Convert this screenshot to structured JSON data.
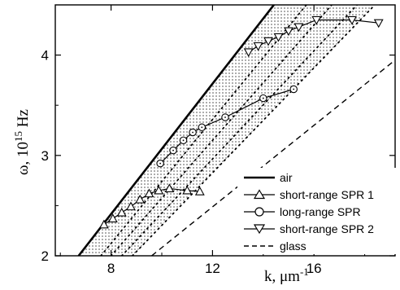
{
  "chart_data": {
    "type": "line",
    "xlabel": {
      "prefix": "k, ",
      "unit": "μm",
      "exp": "-1"
    },
    "ylabel": {
      "prefix": "ω, 10",
      "exp": "15",
      "unit": " Hz"
    },
    "xlim": [
      5.8,
      19.2
    ],
    "ylim": [
      2.0,
      4.5
    ],
    "xticks": [
      8,
      12,
      16
    ],
    "yticks": [
      2,
      3,
      4
    ],
    "grid": false,
    "legend_position": "bottom-right",
    "series": [
      {
        "name": "air",
        "style": "thick-solid",
        "marker": "none",
        "x": [
          6.72,
          14.42
        ],
        "y": [
          2.0,
          4.5
        ]
      },
      {
        "name": "short-range SPR 1",
        "style": "solid",
        "marker": "triangle-up",
        "x": [
          7.72,
          8.07,
          8.42,
          8.78,
          9.14,
          9.5,
          9.88,
          10.3,
          11.0,
          11.5
        ],
        "y": [
          2.31,
          2.37,
          2.43,
          2.49,
          2.56,
          2.62,
          2.65,
          2.67,
          2.65,
          2.64
        ]
      },
      {
        "name": "long-range SPR",
        "style": "solid",
        "marker": "circle",
        "x": [
          9.94,
          10.45,
          10.85,
          11.22,
          11.58,
          12.5,
          14.0,
          15.2
        ],
        "y": [
          2.92,
          3.05,
          3.15,
          3.23,
          3.28,
          3.38,
          3.57,
          3.66
        ]
      },
      {
        "name": "short-range SPR 2",
        "style": "solid",
        "marker": "triangle-down",
        "x": [
          13.42,
          13.8,
          14.2,
          14.6,
          15.0,
          15.4,
          16.1,
          17.5,
          18.55
        ],
        "y": [
          4.03,
          4.09,
          4.14,
          4.18,
          4.24,
          4.28,
          4.35,
          4.35,
          4.32
        ]
      },
      {
        "name": "glass",
        "style": "dashed",
        "marker": "none",
        "x": [
          9.6,
          19.2
        ],
        "y": [
          2.0,
          3.95
        ]
      }
    ],
    "dotted_lines": [
      {
        "x": [
          7.6,
          15.7
        ],
        "y": [
          2.0,
          4.5
        ]
      },
      {
        "x": [
          8.0,
          16.7
        ],
        "y": [
          2.0,
          4.5
        ]
      },
      {
        "x": [
          8.42,
          17.7
        ],
        "y": [
          2.0,
          4.5
        ]
      },
      {
        "x": [
          8.84,
          18.4
        ],
        "y": [
          2.0,
          4.5
        ]
      }
    ]
  }
}
